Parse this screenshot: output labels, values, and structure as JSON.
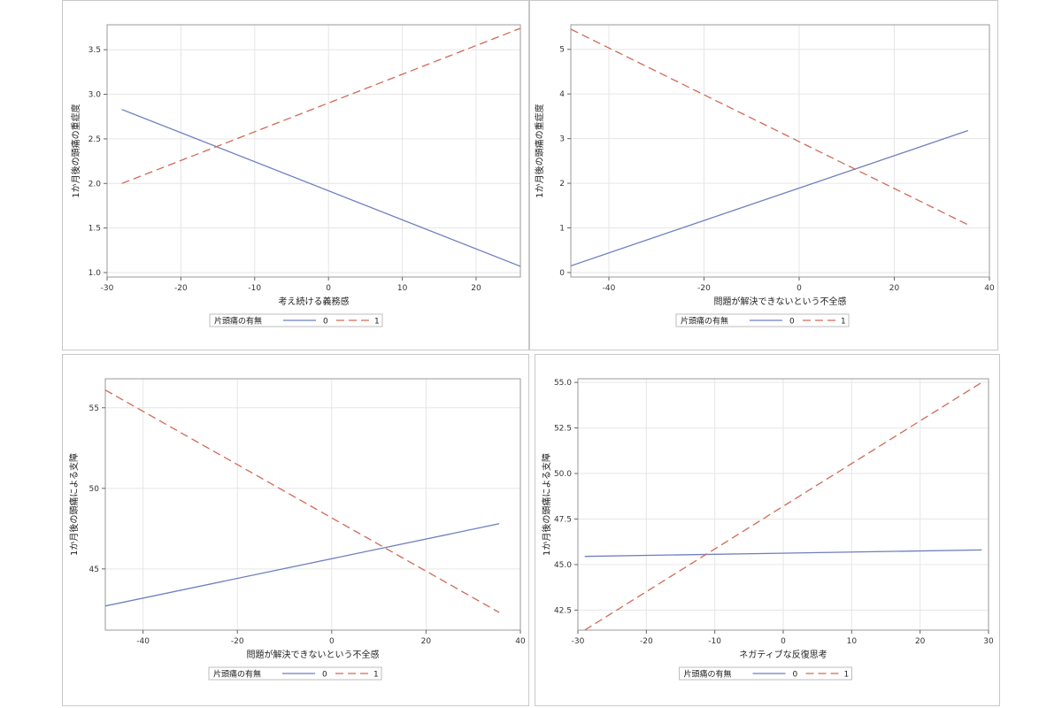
{
  "legend": {
    "title": "片頭痛の有無",
    "entries": [
      {
        "label": "0",
        "color": "#6e7fc0",
        "dash": "solid"
      },
      {
        "label": "1",
        "color": "#d06a55",
        "dash": "dashed"
      }
    ]
  },
  "chart_data": [
    {
      "type": "line",
      "xlabel": "考え続ける義務感",
      "ylabel": "1か月後の頭痛の重症度",
      "xlim": [
        -30,
        26
      ],
      "ylim": [
        0.95,
        3.78
      ],
      "xticks": [
        -30,
        -20,
        -10,
        0,
        10,
        20
      ],
      "yticks": [
        1.0,
        1.5,
        2.0,
        2.5,
        3.0,
        3.5
      ],
      "ytick_labels": [
        "1.0",
        "1.5",
        "2.0",
        "2.5",
        "3.0",
        "3.5"
      ],
      "grid": true,
      "legend_position": "bottom",
      "series": [
        {
          "name": "0",
          "x": [
            -28,
            26
          ],
          "y": [
            2.83,
            1.07
          ]
        },
        {
          "name": "1",
          "x": [
            -28,
            26
          ],
          "y": [
            2.0,
            3.74
          ]
        }
      ]
    },
    {
      "type": "line",
      "xlabel": "問題が解決できないという不全感",
      "ylabel": "1か月後の頭痛の重症度",
      "xlim": [
        -48,
        40
      ],
      "ylim": [
        -0.1,
        5.55
      ],
      "xticks": [
        -40,
        -20,
        0,
        20,
        40
      ],
      "yticks": [
        0,
        1,
        2,
        3,
        4,
        5
      ],
      "ytick_labels": [
        "0",
        "1",
        "2",
        "3",
        "4",
        "5"
      ],
      "grid": true,
      "legend_position": "bottom",
      "series": [
        {
          "name": "0",
          "x": [
            -48,
            35.5
          ],
          "y": [
            0.15,
            3.18
          ]
        },
        {
          "name": "1",
          "x": [
            -48,
            35.5
          ],
          "y": [
            5.45,
            1.07
          ]
        }
      ]
    },
    {
      "type": "line",
      "xlabel": "問題が解決できないという不全感",
      "ylabel": "1か月後の頭痛による支障",
      "xlim": [
        -48,
        40
      ],
      "ylim": [
        41.2,
        56.8
      ],
      "xticks": [
        -40,
        -20,
        0,
        20,
        40
      ],
      "yticks": [
        45,
        50,
        55
      ],
      "ytick_labels": [
        "45",
        "50",
        "55"
      ],
      "grid": true,
      "legend_position": "bottom",
      "series": [
        {
          "name": "0",
          "x": [
            -48,
            35.5
          ],
          "y": [
            42.7,
            47.8
          ]
        },
        {
          "name": "1",
          "x": [
            -48,
            35.5
          ],
          "y": [
            56.1,
            42.3
          ]
        }
      ]
    },
    {
      "type": "line",
      "xlabel": "ネガティブな反復思考",
      "ylabel": "1か月後の頭痛による支障",
      "xlim": [
        -30,
        30
      ],
      "ylim": [
        41.4,
        55.2
      ],
      "xticks": [
        -30,
        -20,
        -10,
        0,
        10,
        20,
        30
      ],
      "yticks": [
        42.5,
        45.0,
        47.5,
        50.0,
        52.5,
        55.0
      ],
      "ytick_labels": [
        "42.5",
        "45.0",
        "47.5",
        "50.0",
        "52.5",
        "55.0"
      ],
      "grid": true,
      "legend_position": "bottom",
      "series": [
        {
          "name": "0",
          "x": [
            -29,
            29
          ],
          "y": [
            45.45,
            45.8
          ]
        },
        {
          "name": "1",
          "x": [
            -29,
            29
          ],
          "y": [
            41.4,
            55.0
          ]
        }
      ]
    }
  ]
}
